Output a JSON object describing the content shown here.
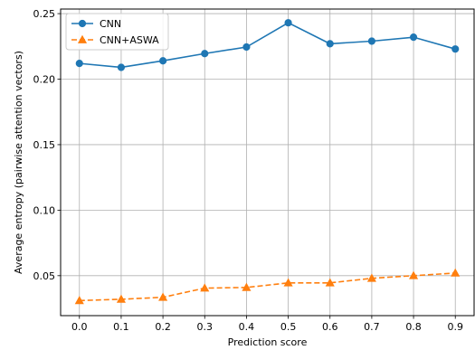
{
  "chart_data": {
    "type": "line",
    "title": "",
    "xlabel": "Prediction score",
    "ylabel": "Average entropy (pairwise attention vectors)",
    "x": [
      0.0,
      0.1,
      0.2,
      0.3,
      0.4,
      0.5,
      0.6,
      0.7,
      0.8,
      0.9
    ],
    "x_tick_labels": [
      "0.0",
      "0.1",
      "0.2",
      "0.3",
      "0.4",
      "0.5",
      "0.6",
      "0.7",
      "0.8",
      "0.9"
    ],
    "xlim": [
      -0.045,
      0.945
    ],
    "ylim": [
      0.0195,
      0.2535
    ],
    "y_ticks": [
      0.05,
      0.1,
      0.15,
      0.2,
      0.25
    ],
    "y_tick_labels": [
      "0.05",
      "0.10",
      "0.15",
      "0.20",
      "0.25"
    ],
    "grid": true,
    "legend_position": "top-left",
    "series": [
      {
        "name": "CNN",
        "color": "#1f77b4",
        "marker": "circle",
        "linestyle": "solid",
        "values": [
          0.212,
          0.209,
          0.214,
          0.2195,
          0.2245,
          0.243,
          0.227,
          0.229,
          0.232,
          0.223
        ]
      },
      {
        "name": "CNN+ASWA",
        "color": "#ff7f0e",
        "marker": "triangle",
        "linestyle": "dashed",
        "values": [
          0.031,
          0.032,
          0.0335,
          0.0405,
          0.041,
          0.0445,
          0.0445,
          0.048,
          0.05,
          0.052
        ]
      }
    ]
  }
}
